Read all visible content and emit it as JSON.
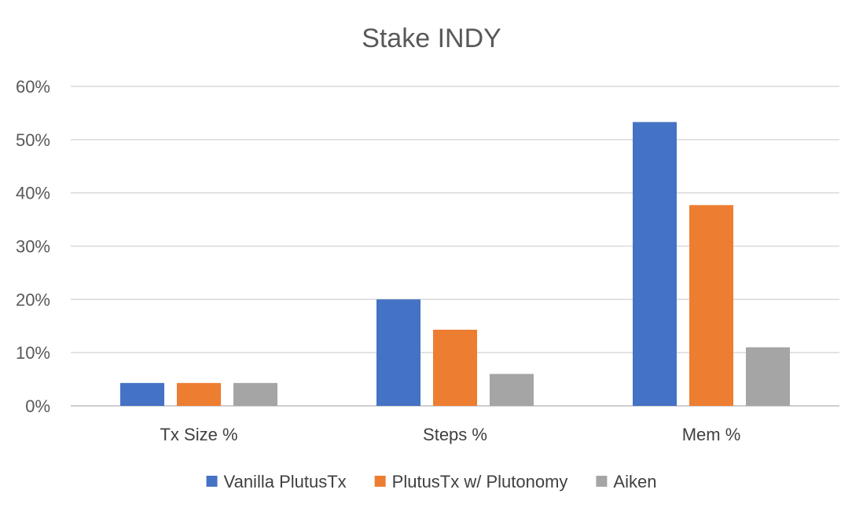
{
  "chart_data": {
    "type": "bar",
    "title": "Stake INDY",
    "categories": [
      "Tx Size %",
      "Steps %",
      "Mem %"
    ],
    "ylim": [
      0,
      60
    ],
    "yticks": [
      0,
      10,
      20,
      30,
      40,
      50,
      60
    ],
    "ytick_labels": [
      "0%",
      "10%",
      "20%",
      "30%",
      "40%",
      "50%",
      "60%"
    ],
    "grid": true,
    "legend_position": "bottom",
    "series": [
      {
        "name": "Vanilla PlutusTx",
        "color": "#4472c4",
        "values": [
          4.3,
          20.0,
          53.3
        ]
      },
      {
        "name": "PlutusTx w/ Plutonomy",
        "color": "#ed7d31",
        "values": [
          4.3,
          14.3,
          37.7
        ]
      },
      {
        "name": "Aiken",
        "color": "#a5a5a5",
        "values": [
          4.3,
          6.0,
          11.0
        ]
      }
    ]
  }
}
